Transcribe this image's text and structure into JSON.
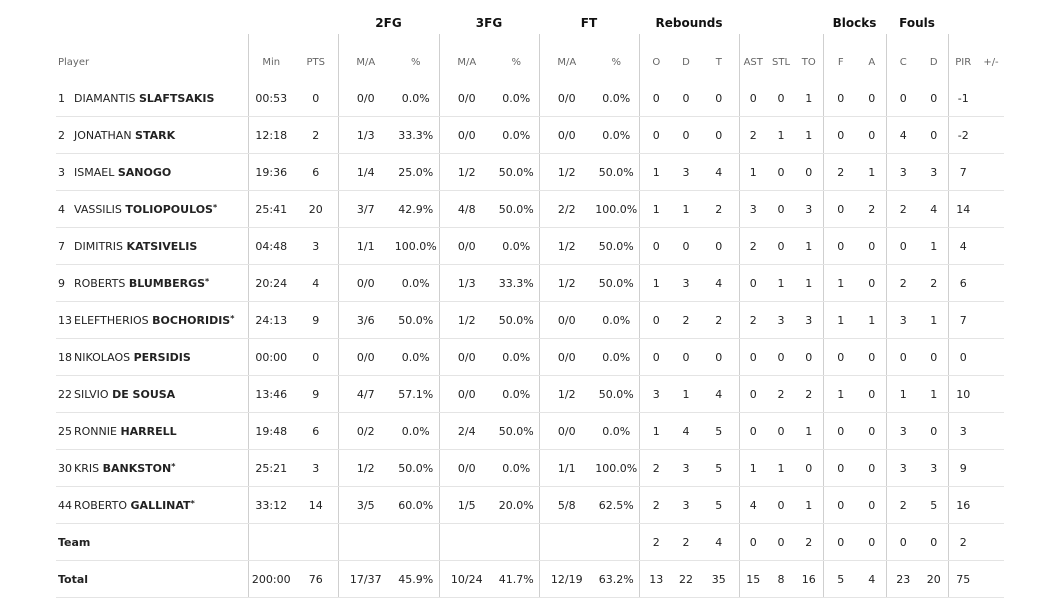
{
  "groups": {
    "fg2": "2FG",
    "fg3": "3FG",
    "ft": "FT",
    "rebounds": "Rebounds",
    "blocks": "Blocks",
    "fouls": "Fouls"
  },
  "headers": [
    "Player",
    "Min",
    "PTS",
    "M/A",
    "%",
    "M/A",
    "%",
    "M/A",
    "%",
    "O",
    "D",
    "T",
    "AST",
    "STL",
    "TO",
    "F",
    "A",
    "C",
    "D",
    "PIR",
    "+/-"
  ],
  "players": [
    {
      "number": "1",
      "first": "DIAMANTIS",
      "last": "SLAFTSAKIS",
      "star": "",
      "stats": [
        "00:53",
        "0",
        "0/0",
        "0.0%",
        "0/0",
        "0.0%",
        "0/0",
        "0.0%",
        "0",
        "0",
        "0",
        "0",
        "0",
        "1",
        "0",
        "0",
        "0",
        "0",
        "-1",
        ""
      ]
    },
    {
      "number": "2",
      "first": "JONATHAN",
      "last": "STARK",
      "star": "",
      "stats": [
        "12:18",
        "2",
        "1/3",
        "33.3%",
        "0/0",
        "0.0%",
        "0/0",
        "0.0%",
        "0",
        "0",
        "0",
        "2",
        "1",
        "1",
        "0",
        "0",
        "4",
        "0",
        "-2",
        ""
      ]
    },
    {
      "number": "3",
      "first": "ISMAEL",
      "last": "SANOGO",
      "star": "",
      "stats": [
        "19:36",
        "6",
        "1/4",
        "25.0%",
        "1/2",
        "50.0%",
        "1/2",
        "50.0%",
        "1",
        "3",
        "4",
        "1",
        "0",
        "0",
        "2",
        "1",
        "3",
        "3",
        "7",
        ""
      ]
    },
    {
      "number": "4",
      "first": "VASSILIS",
      "last": "TOLIOPOULOS",
      "star": "*",
      "stats": [
        "25:41",
        "20",
        "3/7",
        "42.9%",
        "4/8",
        "50.0%",
        "2/2",
        "100.0%",
        "1",
        "1",
        "2",
        "3",
        "0",
        "3",
        "0",
        "2",
        "2",
        "4",
        "14",
        ""
      ]
    },
    {
      "number": "7",
      "first": "DIMITRIS",
      "last": "KATSIVELIS",
      "star": "",
      "stats": [
        "04:48",
        "3",
        "1/1",
        "100.0%",
        "0/0",
        "0.0%",
        "1/2",
        "50.0%",
        "0",
        "0",
        "0",
        "2",
        "0",
        "1",
        "0",
        "0",
        "0",
        "1",
        "4",
        ""
      ]
    },
    {
      "number": "9",
      "first": "ROBERTS",
      "last": "BLUMBERGS",
      "star": "*",
      "stats": [
        "20:24",
        "4",
        "0/0",
        "0.0%",
        "1/3",
        "33.3%",
        "1/2",
        "50.0%",
        "1",
        "3",
        "4",
        "0",
        "1",
        "1",
        "1",
        "0",
        "2",
        "2",
        "6",
        ""
      ]
    },
    {
      "number": "13",
      "first": "ELEFTHERIOS",
      "last": "BOCHORIDIS",
      "star": "*",
      "stats": [
        "24:13",
        "9",
        "3/6",
        "50.0%",
        "1/2",
        "50.0%",
        "0/0",
        "0.0%",
        "0",
        "2",
        "2",
        "2",
        "3",
        "3",
        "1",
        "1",
        "3",
        "1",
        "7",
        ""
      ]
    },
    {
      "number": "18",
      "first": "NIKOLAOS",
      "last": "PERSIDIS",
      "star": "",
      "stats": [
        "00:00",
        "0",
        "0/0",
        "0.0%",
        "0/0",
        "0.0%",
        "0/0",
        "0.0%",
        "0",
        "0",
        "0",
        "0",
        "0",
        "0",
        "0",
        "0",
        "0",
        "0",
        "0",
        ""
      ]
    },
    {
      "number": "22",
      "first": "SILVIO",
      "last": "DE SOUSA",
      "star": "",
      "stats": [
        "13:46",
        "9",
        "4/7",
        "57.1%",
        "0/0",
        "0.0%",
        "1/2",
        "50.0%",
        "3",
        "1",
        "4",
        "0",
        "2",
        "2",
        "1",
        "0",
        "1",
        "1",
        "10",
        ""
      ]
    },
    {
      "number": "25",
      "first": "RONNIE",
      "last": "HARRELL",
      "star": "",
      "stats": [
        "19:48",
        "6",
        "0/2",
        "0.0%",
        "2/4",
        "50.0%",
        "0/0",
        "0.0%",
        "1",
        "4",
        "5",
        "0",
        "0",
        "1",
        "0",
        "0",
        "3",
        "0",
        "3",
        ""
      ]
    },
    {
      "number": "30",
      "first": "KRIS",
      "last": "BANKSTON",
      "star": "*",
      "stats": [
        "25:21",
        "3",
        "1/2",
        "50.0%",
        "0/0",
        "0.0%",
        "1/1",
        "100.0%",
        "2",
        "3",
        "5",
        "1",
        "1",
        "0",
        "0",
        "0",
        "3",
        "3",
        "9",
        ""
      ]
    },
    {
      "number": "44",
      "first": "ROBERTO",
      "last": "GALLINAT",
      "star": "*",
      "stats": [
        "33:12",
        "14",
        "3/5",
        "60.0%",
        "1/5",
        "20.0%",
        "5/8",
        "62.5%",
        "2",
        "3",
        "5",
        "4",
        "0",
        "1",
        "0",
        "0",
        "2",
        "5",
        "16",
        ""
      ]
    }
  ],
  "team": {
    "label": "Team",
    "stats": [
      "",
      "",
      "",
      "",
      "",
      "",
      "",
      "",
      "2",
      "2",
      "4",
      "0",
      "0",
      "2",
      "0",
      "0",
      "0",
      "0",
      "2",
      ""
    ]
  },
  "total": {
    "label": "Total",
    "stats": [
      "200:00",
      "76",
      "17/37",
      "45.9%",
      "10/24",
      "41.7%",
      "12/19",
      "63.2%",
      "13",
      "22",
      "35",
      "15",
      "8",
      "16",
      "5",
      "4",
      "23",
      "20",
      "75",
      ""
    ]
  }
}
